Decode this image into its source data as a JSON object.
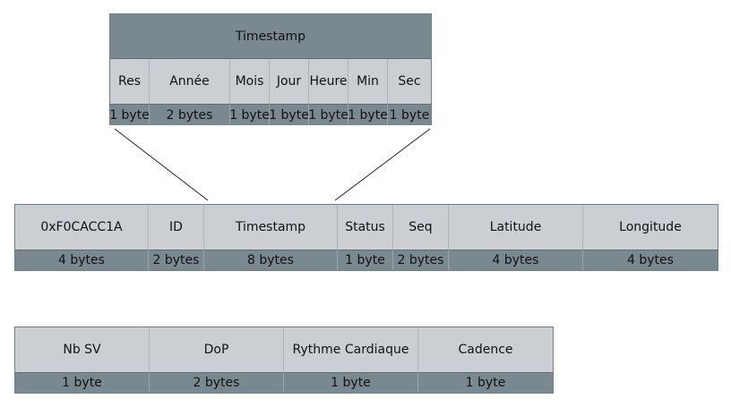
{
  "timestamp_detail": {
    "title": "Timestamp",
    "fields": [
      {
        "label": "Res",
        "size": "1 byte"
      },
      {
        "label": "Année",
        "size": "2 bytes"
      },
      {
        "label": "Mois",
        "size": "1 byte"
      },
      {
        "label": "Jour",
        "size": "1 byte"
      },
      {
        "label": "Heure",
        "size": "1 byte"
      },
      {
        "label": "Min",
        "size": "1 byte"
      },
      {
        "label": "Sec",
        "size": "1 byte"
      }
    ]
  },
  "frame_row1": {
    "fields": [
      {
        "label": "0xF0CACC1A",
        "size": "4 bytes"
      },
      {
        "label": "ID",
        "size": "2 bytes"
      },
      {
        "label": "Timestamp",
        "size": "8 bytes"
      },
      {
        "label": "Status",
        "size": "1 byte"
      },
      {
        "label": "Seq",
        "size": "2 bytes"
      },
      {
        "label": "Latitude",
        "size": "4 bytes"
      },
      {
        "label": "Longitude",
        "size": "4 bytes"
      }
    ]
  },
  "frame_row2": {
    "fields": [
      {
        "label": "Nb SV",
        "size": "1 byte"
      },
      {
        "label": "DoP",
        "size": "2 bytes"
      },
      {
        "label": "Rythme Cardiaque",
        "size": "1 byte"
      },
      {
        "label": "Cadence",
        "size": "1 byte"
      }
    ]
  }
}
